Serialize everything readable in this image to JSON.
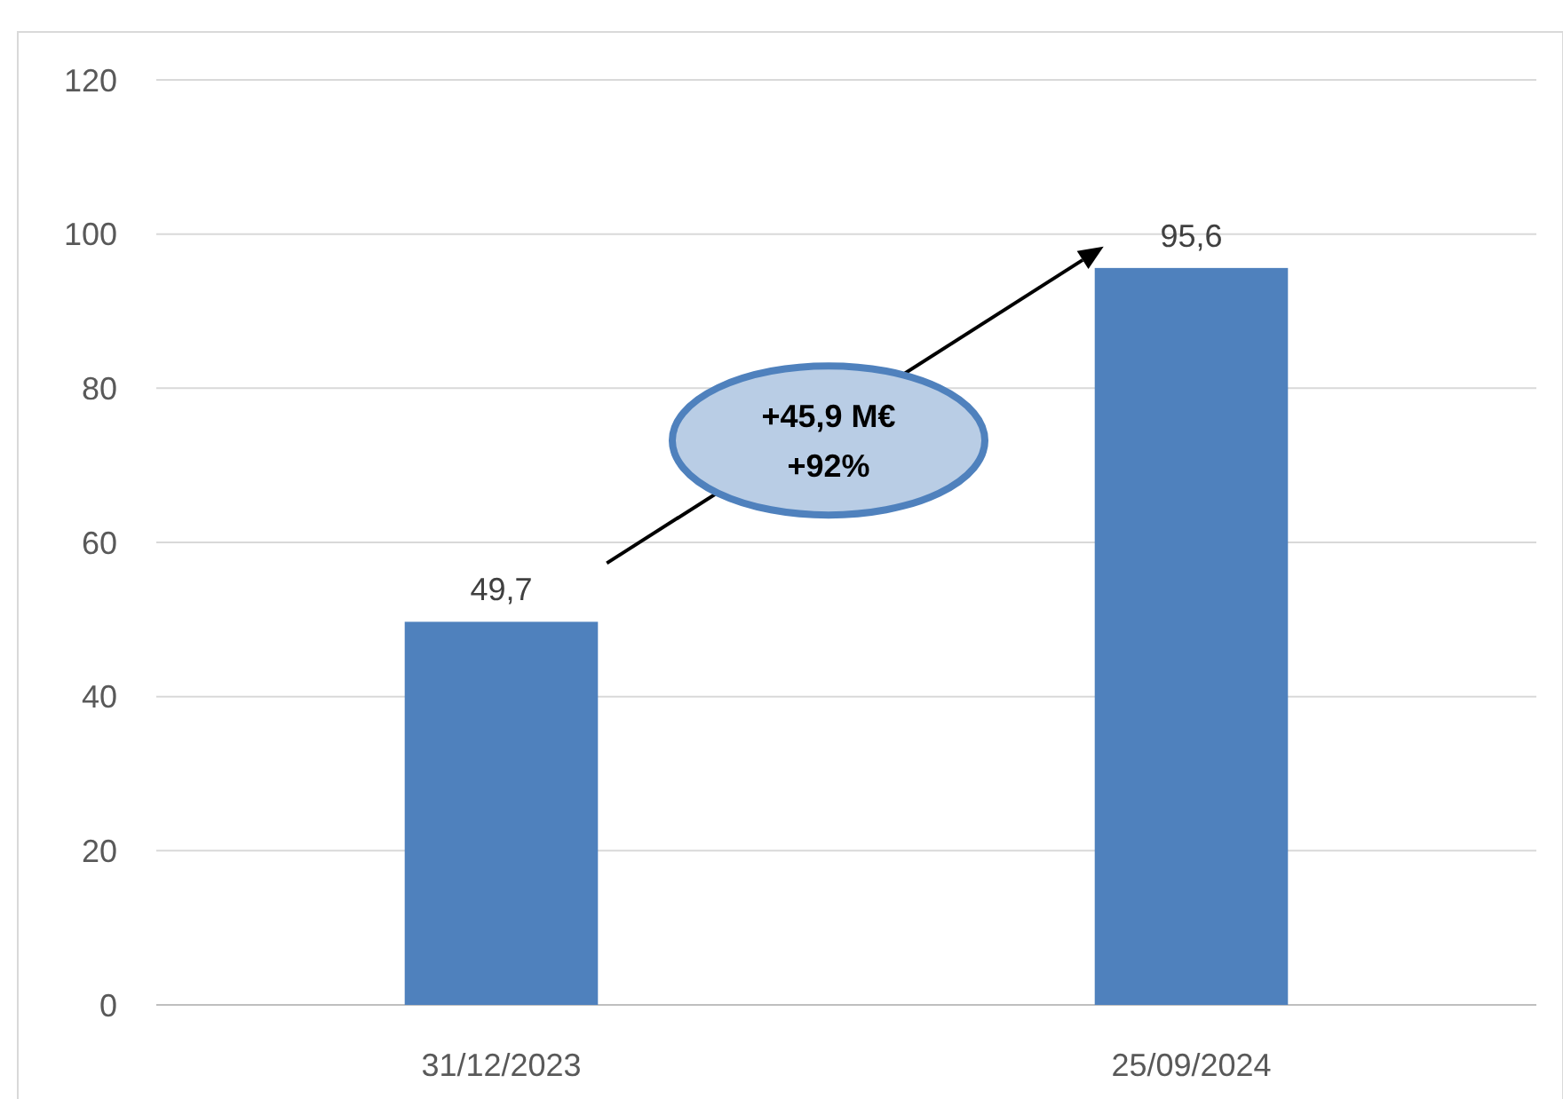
{
  "chart_data": {
    "type": "bar",
    "categories": [
      "31/12/2023",
      "25/09/2024"
    ],
    "values": [
      49.7,
      95.6
    ],
    "color": "#4f81bd",
    "value_labels": [
      "49,7",
      "95,6"
    ],
    "ylim": [
      0,
      120
    ],
    "yticks": [
      0,
      20,
      40,
      60,
      80,
      100,
      120
    ],
    "grid": "y",
    "annotations": [
      "+45,9 M€",
      "+92%"
    ]
  }
}
